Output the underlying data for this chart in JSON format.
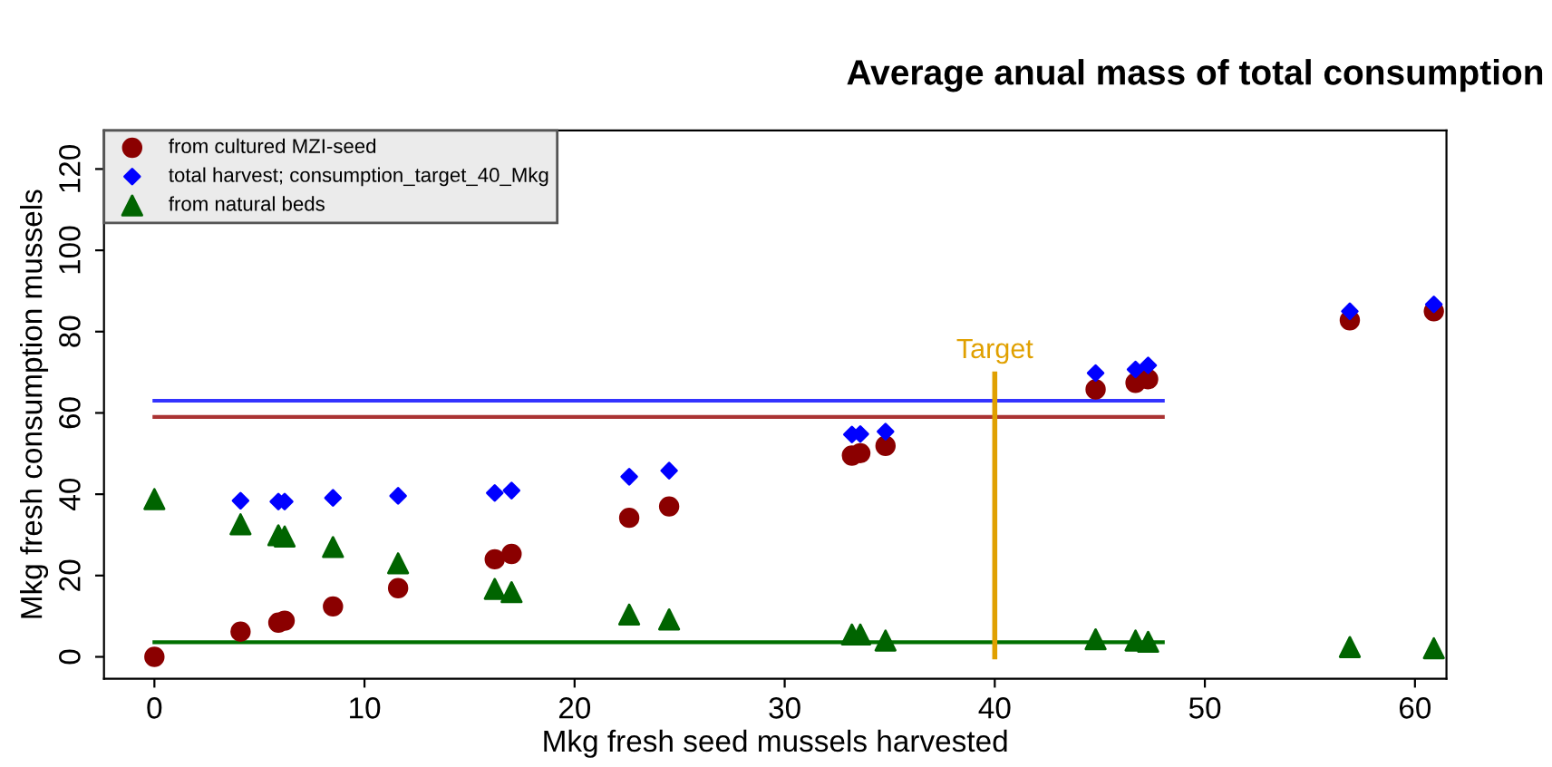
{
  "chart_data": {
    "type": "scatter",
    "title": "Average anual mass of total consumption",
    "xlabel": "Mkg fresh seed mussels harvested",
    "ylabel": "Mkg fresh consumption mussels",
    "x": [
      0,
      4.1,
      5.9,
      6.2,
      8.5,
      11.6,
      16.2,
      17.0,
      22.6,
      24.5,
      33.2,
      33.6,
      34.8,
      44.8,
      46.7,
      47.3,
      56.9,
      60.9
    ],
    "series": [
      {
        "name": "from cultured MZI-seed",
        "color": "#8b0000",
        "marker": "circle",
        "values": [
          0,
          6.2,
          8.4,
          8.9,
          12.4,
          16.9,
          24.0,
          25.3,
          34.2,
          37.0,
          49.5,
          50.1,
          51.9,
          65.8,
          67.4,
          68.3,
          82.8,
          85.0
        ]
      },
      {
        "name": "total harvest; consumption_target_40_Mkg",
        "color": "#0000ff",
        "marker": "diamond",
        "values": [
          null,
          38.4,
          38.2,
          38.2,
          39.1,
          39.6,
          40.3,
          40.9,
          44.3,
          45.8,
          54.7,
          54.8,
          55.4,
          69.8,
          70.7,
          71.7,
          85.0,
          86.7
        ]
      },
      {
        "name": "from natural beds",
        "color": "#006400",
        "marker": "triangle",
        "values": [
          38.8,
          32.6,
          29.9,
          29.6,
          27.0,
          23.0,
          16.7,
          15.9,
          10.4,
          9.2,
          5.5,
          5.5,
          4.0,
          4.3,
          4.0,
          3.7,
          2.4,
          2.1
        ]
      },
      {
        "type": "line",
        "color": "#3333ff",
        "x": [
          0,
          48
        ],
        "values": [
          63.0,
          63.0
        ]
      },
      {
        "type": "line",
        "color": "#aa3333",
        "x": [
          0,
          48
        ],
        "values": [
          59.0,
          59.0
        ]
      },
      {
        "type": "line",
        "color": "#007000",
        "x": [
          0,
          48
        ],
        "values": [
          3.6,
          3.6
        ]
      },
      {
        "type": "line",
        "color": "#e0a000",
        "x": [
          40,
          40
        ],
        "values": [
          0,
          69.6
        ]
      }
    ],
    "annotations": [
      {
        "text": "Target",
        "x": 40,
        "y": 69.6
      }
    ],
    "xlim": [
      -2.4,
      61.5
    ],
    "ylim": [
      -5.4,
      129.5
    ],
    "xticks": [
      0,
      10,
      20,
      30,
      40,
      50,
      60
    ],
    "yticks": [
      0,
      20,
      40,
      60,
      80,
      100,
      120
    ],
    "legend": "top left",
    "grid": false
  }
}
